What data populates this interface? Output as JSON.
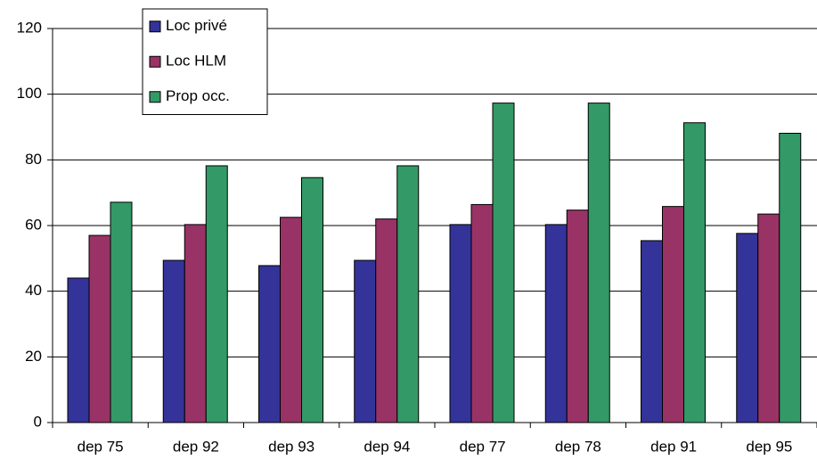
{
  "chart_data": {
    "type": "bar",
    "categories": [
      "dep 75",
      "dep 92",
      "dep 93",
      "dep 94",
      "dep 77",
      "dep 78",
      "dep 91",
      "dep 95"
    ],
    "series": [
      {
        "name": "Loc privé",
        "color": "#333399",
        "values": [
          44.0,
          49.4,
          47.8,
          49.4,
          60.3,
          60.3,
          55.4,
          57.6
        ]
      },
      {
        "name": "Loc HLM",
        "color": "#993366",
        "values": [
          57.0,
          60.3,
          62.5,
          62.0,
          66.4,
          64.7,
          65.8,
          63.5
        ]
      },
      {
        "name": "Prop occ.",
        "color": "#339966",
        "values": [
          67.1,
          78.2,
          74.6,
          78.2,
          97.3,
          97.3,
          91.3,
          88.1
        ]
      }
    ],
    "ylim": [
      0,
      120
    ],
    "yticks": [
      0,
      20,
      40,
      60,
      80,
      100,
      120
    ],
    "grid": true,
    "legend": "top-left"
  }
}
